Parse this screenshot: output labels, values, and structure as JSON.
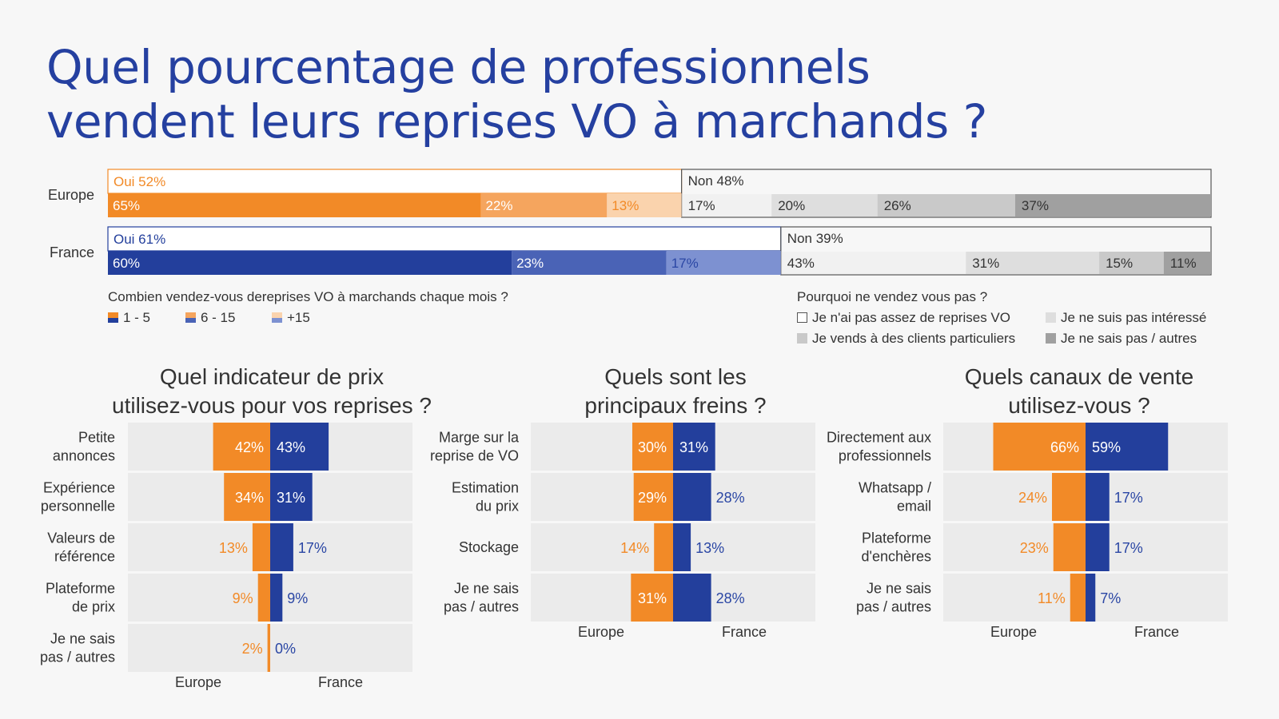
{
  "title": {
    "line1": "Quel pourcentage de professionnels",
    "line2": "vendent leurs reprises VO à marchands ?"
  },
  "colors": {
    "accent_title": "#2540a0",
    "eu_1": "#f28a27",
    "eu_2": "#f5a55e",
    "eu_3": "#fad3ad",
    "fr_1": "#233f9c",
    "fr_2": "#4a63b6",
    "fr_3": "#7d91d1",
    "non_1": "#f1f1f1",
    "non_2": "#dedede",
    "non_3": "#c9c9c9",
    "non_4": "#a0a0a0",
    "grid_bg": "#ebebeb"
  },
  "top": {
    "rows": [
      {
        "label": "Europe",
        "oui_label": "Oui 52%",
        "oui": 52,
        "non_label": "Non 48%",
        "non": 48,
        "oui_segments": [
          {
            "label": "65%",
            "value": 65
          },
          {
            "label": "22%",
            "value": 22
          },
          {
            "label": "13%",
            "value": 13
          }
        ],
        "non_segments": [
          {
            "label": "17%",
            "value": 17
          },
          {
            "label": "20%",
            "value": 20
          },
          {
            "label": "26%",
            "value": 26
          },
          {
            "label": "37%",
            "value": 37
          }
        ]
      },
      {
        "label": "France",
        "oui_label": "Oui 61%",
        "oui": 61,
        "non_label": "Non 39%",
        "non": 39,
        "oui_segments": [
          {
            "label": "60%",
            "value": 60
          },
          {
            "label": "23%",
            "value": 23
          },
          {
            "label": "17%",
            "value": 17
          }
        ],
        "non_segments": [
          {
            "label": "43%",
            "value": 43
          },
          {
            "label": "31%",
            "value": 31
          },
          {
            "label": "15%",
            "value": 15
          },
          {
            "label": "11%",
            "value": 11
          }
        ]
      }
    ],
    "legend_left": {
      "question": "Combien vendez-vous dereprises VO à marchands chaque mois ?",
      "items": [
        "1 - 5",
        "6 - 15",
        "+15"
      ]
    },
    "legend_right": {
      "question": "Pourquoi ne vendez vous pas ?",
      "items": [
        "Je n'ai pas assez de reprises VO",
        "Je ne suis pas intéressé",
        "Je vends à des clients particuliers",
        "Je ne sais pas / autres"
      ]
    }
  },
  "panels": [
    {
      "title1": "Quel indicateur de prix",
      "title2": "utilisez-vous pour vos reprises ?",
      "axis_left": "Europe",
      "axis_right": "France",
      "rows": [
        {
          "label": [
            "Petite",
            "annonces"
          ],
          "europe": 42,
          "france": 43,
          "eu_label": "42%",
          "fr_label": "43%"
        },
        {
          "label": [
            "Expérience",
            "personnelle"
          ],
          "europe": 34,
          "france": 31,
          "eu_label": "34%",
          "fr_label": "31%"
        },
        {
          "label": [
            "Valeurs de",
            "référence"
          ],
          "europe": 13,
          "france": 17,
          "eu_label": "13%",
          "fr_label": "17%"
        },
        {
          "label": [
            "Plateforme",
            "de prix"
          ],
          "europe": 9,
          "france": 9,
          "eu_label": "9%",
          "fr_label": "9%"
        },
        {
          "label": [
            "Je ne sais",
            "pas / autres"
          ],
          "europe": 2,
          "france": 0,
          "eu_label": "2%",
          "fr_label": "0%"
        }
      ]
    },
    {
      "title1": "Quels sont les",
      "title2": "principaux freins ?",
      "axis_left": "Europe",
      "axis_right": "France",
      "rows": [
        {
          "label": [
            "Marge sur la",
            "reprise de VO"
          ],
          "europe": 30,
          "france": 31,
          "eu_label": "30%",
          "fr_label": "31%"
        },
        {
          "label": [
            "Estimation",
            "du prix"
          ],
          "europe": 29,
          "france": 28,
          "eu_label": "29%",
          "fr_label": "28%"
        },
        {
          "label": [
            "Stockage"
          ],
          "europe": 14,
          "france": 13,
          "eu_label": "14%",
          "fr_label": "13%"
        },
        {
          "label": [
            "Je ne sais",
            "pas / autres"
          ],
          "europe": 31,
          "france": 28,
          "eu_label": "31%",
          "fr_label": "28%"
        }
      ]
    },
    {
      "title1": "Quels canaux de vente",
      "title2": "utilisez-vous ?",
      "axis_left": "Europe",
      "axis_right": "France",
      "rows": [
        {
          "label": [
            "Directement aux",
            "professionnels"
          ],
          "europe": 66,
          "france": 59,
          "eu_label": "66%",
          "fr_label": "59%"
        },
        {
          "label": [
            "Whatsapp /",
            "email"
          ],
          "europe": 24,
          "france": 17,
          "eu_label": "24%",
          "fr_label": "17%"
        },
        {
          "label": [
            "Plateforme",
            "d'enchères"
          ],
          "europe": 23,
          "france": 17,
          "eu_label": "23%",
          "fr_label": "17%"
        },
        {
          "label": [
            "Je ne sais",
            "pas / autres"
          ],
          "europe": 11,
          "france": 7,
          "eu_label": "11%",
          "fr_label": "7%"
        }
      ]
    }
  ],
  "chart_data": [
    {
      "type": "bar",
      "title": "Quel pourcentage de professionnels vendent leurs reprises VO à marchands ?",
      "categories": [
        "Europe",
        "France"
      ],
      "series": [
        {
          "name": "Oui",
          "values": [
            52,
            61
          ]
        },
        {
          "name": "Non",
          "values": [
            48,
            39
          ]
        }
      ],
      "oui_breakdown": {
        "question": "Combien vendez-vous dereprises VO à marchands chaque mois ?",
        "series": [
          {
            "name": "1 - 5",
            "values": [
              65,
              60
            ]
          },
          {
            "name": "6 - 15",
            "values": [
              22,
              23
            ]
          },
          {
            "name": "+15",
            "values": [
              13,
              17
            ]
          }
        ]
      },
      "non_breakdown": {
        "question": "Pourquoi ne vendez vous pas ?",
        "series": [
          {
            "name": "Je n'ai pas assez de reprises VO",
            "values": [
              17,
              43
            ]
          },
          {
            "name": "Je ne suis pas intéressé",
            "values": [
              20,
              31
            ]
          },
          {
            "name": "Je vends à des clients particuliers",
            "values": [
              26,
              15
            ]
          },
          {
            "name": "Je ne sais pas / autres",
            "values": [
              37,
              11
            ]
          }
        ]
      }
    },
    {
      "type": "bar",
      "title": "Quel indicateur de prix utilisez-vous pour vos reprises ?",
      "categories": [
        "Petite annonces",
        "Expérience personnelle",
        "Valeurs de référence",
        "Plateforme de prix",
        "Je ne sais pas / autres"
      ],
      "series": [
        {
          "name": "Europe",
          "values": [
            42,
            34,
            13,
            9,
            2
          ]
        },
        {
          "name": "France",
          "values": [
            43,
            31,
            17,
            9,
            0
          ]
        }
      ]
    },
    {
      "type": "bar",
      "title": "Quels sont les principaux freins ?",
      "categories": [
        "Marge sur la reprise de VO",
        "Estimation du prix",
        "Stockage",
        "Je ne sais pas / autres"
      ],
      "series": [
        {
          "name": "Europe",
          "values": [
            30,
            29,
            14,
            31
          ]
        },
        {
          "name": "France",
          "values": [
            31,
            28,
            13,
            28
          ]
        }
      ]
    },
    {
      "type": "bar",
      "title": "Quels canaux de vente utilisez-vous ?",
      "categories": [
        "Directement aux professionnels",
        "Whatsapp / email",
        "Plateforme d'enchères",
        "Je ne sais pas / autres"
      ],
      "series": [
        {
          "name": "Europe",
          "values": [
            66,
            24,
            23,
            11
          ]
        },
        {
          "name": "France",
          "values": [
            59,
            17,
            17,
            7
          ]
        }
      ]
    }
  ]
}
